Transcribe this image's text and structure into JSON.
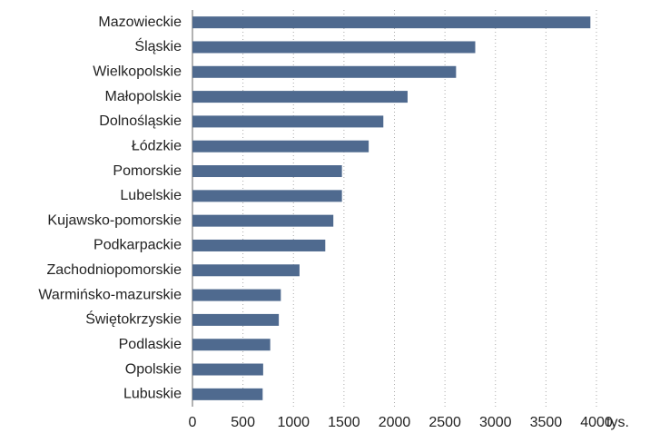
{
  "chart_data": {
    "type": "bar",
    "orientation": "horizontal",
    "categories": [
      "Mazowieckie",
      "Śląskie",
      "Wielkopolskie",
      "Małopolskie",
      "Dolnośląskie",
      "Łódzkie",
      "Pomorskie",
      "Lubelskie",
      "Kujawsko-pomorskie",
      "Podkarpackie",
      "Zachodniopomorskie",
      "Warmińsko-mazurskie",
      "Świętokrzyskie",
      "Podlaskie",
      "Opolskie",
      "Lubuskie"
    ],
    "values": [
      3940,
      2800,
      2610,
      2130,
      1890,
      1745,
      1480,
      1480,
      1395,
      1315,
      1060,
      875,
      855,
      770,
      700,
      695
    ],
    "color": "#4f6a8f",
    "xlim": [
      0,
      4000
    ],
    "xticks": [
      0,
      500,
      1000,
      1500,
      2000,
      2500,
      3000,
      3500,
      4000
    ],
    "xlabel": "tys.",
    "grid": true
  }
}
